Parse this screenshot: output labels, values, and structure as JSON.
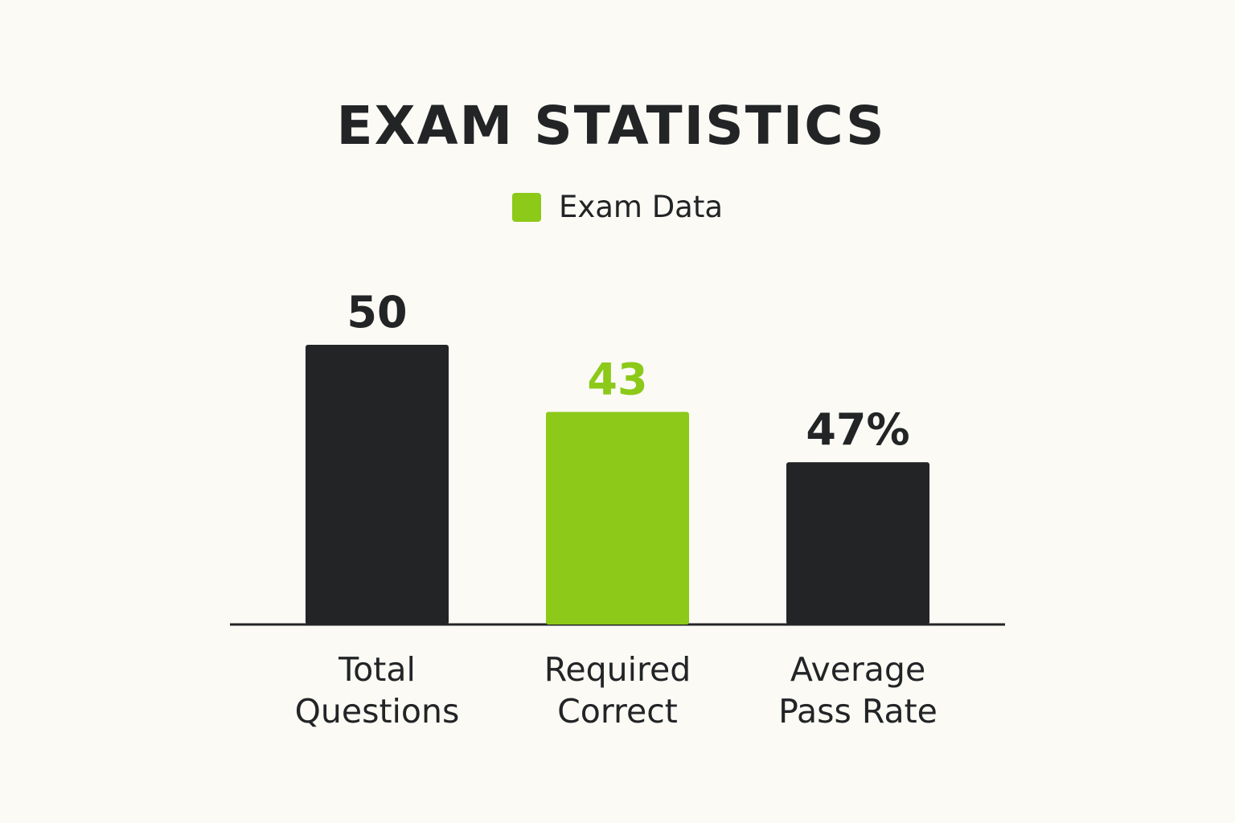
{
  "chart_data": {
    "type": "bar",
    "title": "EXAM STATISTICS",
    "legend": {
      "label": "Exam Data",
      "color": "#8cc919",
      "position": "top-center"
    },
    "categories": [
      [
        "Total",
        "Questions"
      ],
      [
        "Required",
        "Correct"
      ],
      [
        "Average",
        "Pass Rate"
      ]
    ],
    "series": [
      {
        "name": "Exam Data",
        "values": [
          50,
          43,
          47
        ],
        "labels": [
          "50",
          "43",
          "47%"
        ],
        "colors": [
          "#222426",
          "#8cc919",
          "#222426"
        ],
        "label_colors": [
          "#222426",
          "#8cc919",
          "#222426"
        ]
      }
    ],
    "xlabel": "",
    "ylabel": "",
    "grid": false,
    "note": "Bar heights as drawn: bar 3 (47%) is drawn at about 40 on the same scale as the others."
  }
}
